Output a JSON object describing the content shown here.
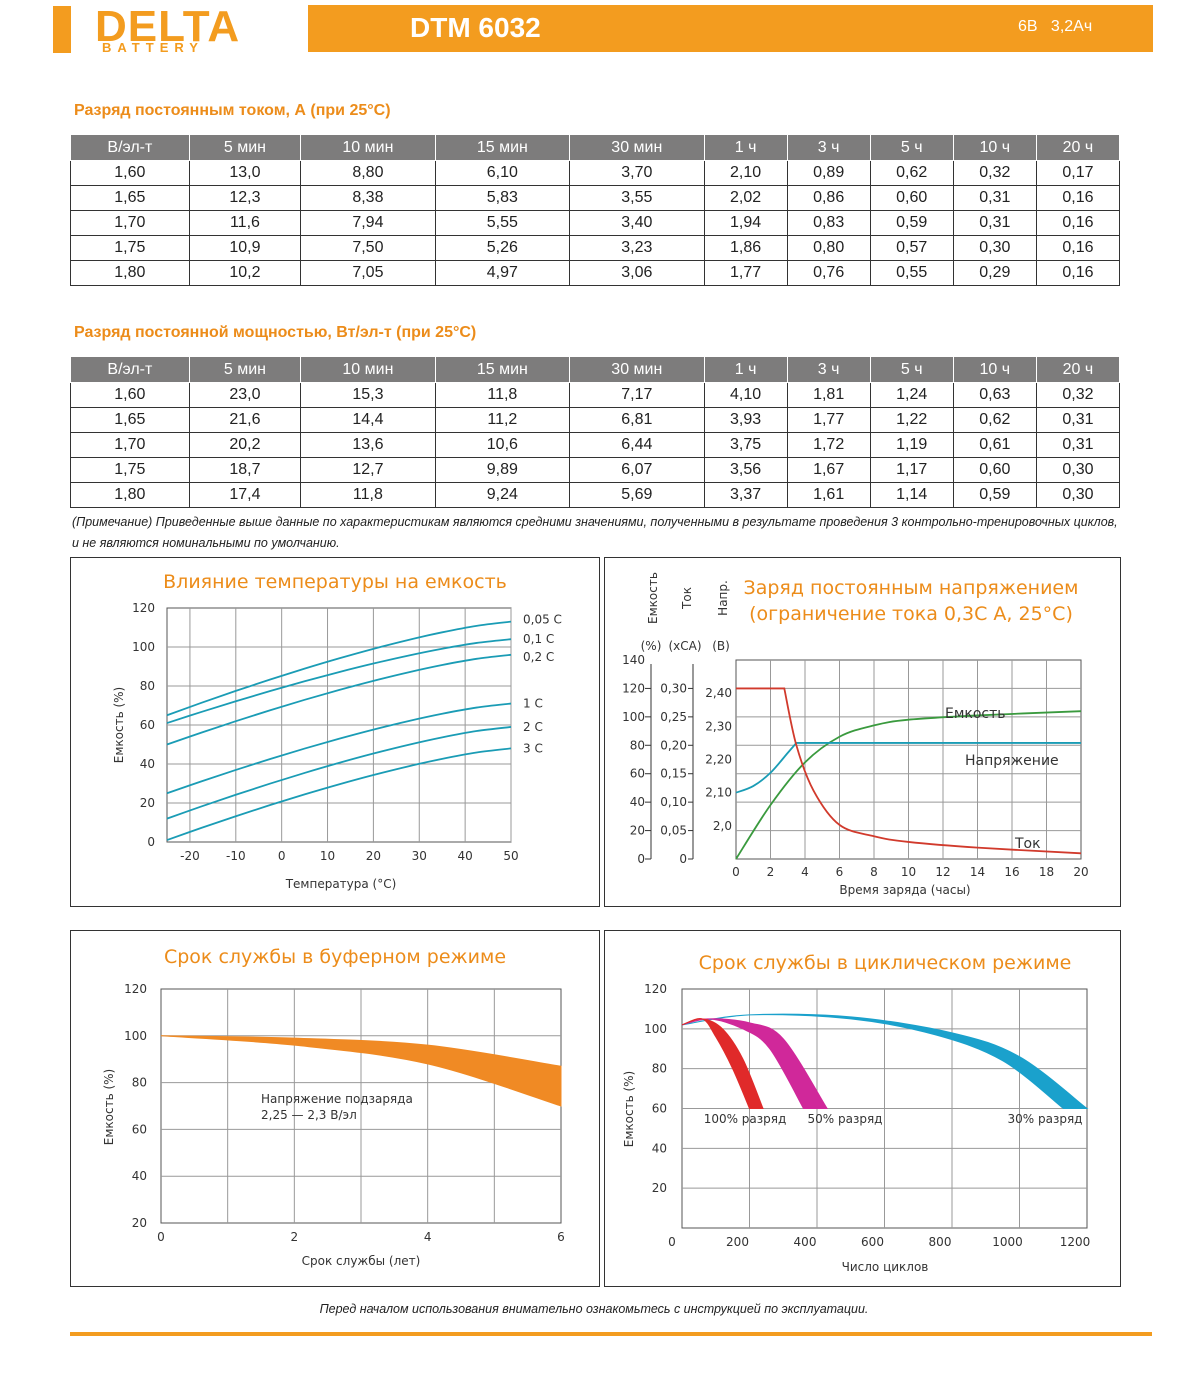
{
  "header": {
    "logo_main": "DELTA",
    "logo_sub": "BATTERY",
    "model": "DTM 6032",
    "voltage": "6В",
    "capacity": "3,2Ач",
    "accent": "#f39c1f"
  },
  "table1": {
    "title": "Разряд постоянным током, А (при 25°C)",
    "headers": [
      "В/эл-т",
      "5 мин",
      "10 мин",
      "15 мин",
      "30 мин",
      "1 ч",
      "3 ч",
      "5 ч",
      "10 ч",
      "20 ч"
    ],
    "rows": [
      [
        "1,60",
        "13,0",
        "8,80",
        "6,10",
        "3,70",
        "2,10",
        "0,89",
        "0,62",
        "0,32",
        "0,17"
      ],
      [
        "1,65",
        "12,3",
        "8,38",
        "5,83",
        "3,55",
        "2,02",
        "0,86",
        "0,60",
        "0,31",
        "0,16"
      ],
      [
        "1,70",
        "11,6",
        "7,94",
        "5,55",
        "3,40",
        "1,94",
        "0,83",
        "0,59",
        "0,31",
        "0,16"
      ],
      [
        "1,75",
        "10,9",
        "7,50",
        "5,26",
        "3,23",
        "1,86",
        "0,80",
        "0,57",
        "0,30",
        "0,16"
      ],
      [
        "1,80",
        "10,2",
        "7,05",
        "4,97",
        "3,06",
        "1,77",
        "0,76",
        "0,55",
        "0,29",
        "0,16"
      ]
    ]
  },
  "table2": {
    "title": "Разряд постоянной мощностью, Вт/эл-т (при 25°C)",
    "headers": [
      "В/эл-т",
      "5 мин",
      "10 мин",
      "15 мин",
      "30 мин",
      "1 ч",
      "3 ч",
      "5 ч",
      "10 ч",
      "20 ч"
    ],
    "rows": [
      [
        "1,60",
        "23,0",
        "15,3",
        "11,8",
        "7,17",
        "4,10",
        "1,81",
        "1,24",
        "0,63",
        "0,32"
      ],
      [
        "1,65",
        "21,6",
        "14,4",
        "11,2",
        "6,81",
        "3,93",
        "1,77",
        "1,22",
        "0,62",
        "0,31"
      ],
      [
        "1,70",
        "20,2",
        "13,6",
        "10,6",
        "6,44",
        "3,75",
        "1,72",
        "1,19",
        "0,61",
        "0,31"
      ],
      [
        "1,75",
        "18,7",
        "12,7",
        "9,89",
        "6,07",
        "3,56",
        "1,67",
        "1,17",
        "0,60",
        "0,30"
      ],
      [
        "1,80",
        "17,4",
        "11,8",
        "9,24",
        "5,69",
        "3,37",
        "1,61",
        "1,14",
        "0,59",
        "0,30"
      ]
    ]
  },
  "note": "(Примечание) Приведенные выше данные по характеристикам являются средними значениями, полученными в результате проведения 3 контрольно-тренировочных циклов, и не являются номинальными по умолчанию.",
  "chart_data": [
    {
      "type": "line",
      "title": "Влияние температуры на емкость",
      "xlabel": "Температура (°C)",
      "ylabel": "Емкость (%)",
      "xlim": [
        -25,
        50
      ],
      "ylim": [
        0,
        120
      ],
      "xticks": [
        "-20",
        "-10",
        "0",
        "10",
        "20",
        "30",
        "40",
        "50"
      ],
      "yticks": [
        "0",
        "20",
        "40",
        "60",
        "80",
        "100",
        "120"
      ],
      "series": [
        {
          "name": "0,05 C",
          "x": [
            -25,
            50
          ],
          "y": [
            65,
            113
          ]
        },
        {
          "name": "0,1 C",
          "x": [
            -25,
            50
          ],
          "y": [
            61,
            104
          ]
        },
        {
          "name": "0,2 C",
          "x": [
            -25,
            50
          ],
          "y": [
            50,
            96
          ]
        },
        {
          "name": "1 C",
          "x": [
            -25,
            50
          ],
          "y": [
            25,
            71
          ]
        },
        {
          "name": "2 C",
          "x": [
            -25,
            50
          ],
          "y": [
            12,
            59
          ]
        },
        {
          "name": "3 C",
          "x": [
            -25,
            50
          ],
          "y": [
            1,
            48
          ]
        }
      ],
      "color": "#1a9cb5"
    },
    {
      "type": "line",
      "title": "Заряд постоянным напряжением",
      "subtitle": "(ограничение тока 0,3С А, 25°С)",
      "axis_headers": [
        "Емкость",
        "Ток",
        "Напр."
      ],
      "axis_units": [
        "(%)",
        "(хСА)",
        "(В)"
      ],
      "xlabel": "Время заряда (часы)",
      "xlim": [
        0,
        20
      ],
      "xticks": [
        "0",
        "2",
        "4",
        "6",
        "8",
        "10",
        "12",
        "14",
        "16",
        "18",
        "20"
      ],
      "y1ticks": [
        "0",
        "20",
        "40",
        "60",
        "80",
        "100",
        "120",
        "140"
      ],
      "y2ticks": [
        "0",
        "0,05",
        "0,10",
        "0,15",
        "0,20",
        "0,25",
        "0,30"
      ],
      "y3ticks": [
        "2,0",
        "2,10",
        "2,20",
        "2,30",
        "2,40"
      ],
      "series": [
        {
          "name": "Емкость",
          "color": "#3a9a3e",
          "x": [
            0,
            2,
            4,
            6,
            8,
            10,
            14,
            20
          ],
          "y": [
            0,
            38,
            68,
            86,
            94,
            98,
            101,
            104
          ]
        },
        {
          "name": "Напряжение",
          "color": "#1a9cb5",
          "x": [
            0,
            1,
            2,
            3,
            3.5,
            20
          ],
          "y": [
            2.1,
            2.12,
            2.16,
            2.22,
            2.25,
            2.25
          ]
        },
        {
          "name": "Ток",
          "color": "#d13a2c",
          "x": [
            0,
            2.8,
            3.5,
            4.5,
            6,
            8,
            10,
            14,
            20
          ],
          "y": [
            0.3,
            0.3,
            0.2,
            0.12,
            0.06,
            0.04,
            0.03,
            0.02,
            0.01
          ]
        }
      ]
    },
    {
      "type": "area",
      "title": "Срок службы в буферном режиме",
      "xlabel": "Срок службы (лет)",
      "ylabel": "Емкость (%)",
      "xlim": [
        0,
        6
      ],
      "ylim": [
        20,
        120
      ],
      "xticks": [
        "0",
        "2",
        "4",
        "6"
      ],
      "yticks": [
        "20",
        "40",
        "60",
        "80",
        "100",
        "120"
      ],
      "annotation": [
        "Напряжение подзаряда",
        "2,25 — 2,3 В/эл"
      ],
      "upper": {
        "x": [
          0,
          2,
          4,
          6
        ],
        "y": [
          100,
          99,
          96,
          87
        ]
      },
      "lower": {
        "x": [
          0,
          2,
          4,
          6
        ],
        "y": [
          100,
          96,
          88,
          70
        ]
      },
      "color": "#f08a24"
    },
    {
      "type": "area",
      "title": "Срок службы в циклическом режиме",
      "xlabel": "Число циклов",
      "ylabel": "Емкость (%)",
      "xlim": [
        0,
        1200
      ],
      "ylim": [
        0,
        120
      ],
      "xticks": [
        "0",
        "200",
        "400",
        "600",
        "800",
        "1000",
        "1200"
      ],
      "yticks": [
        "20",
        "40",
        "60",
        "80",
        "100",
        "120"
      ],
      "series": [
        {
          "name": "100% разряд",
          "color": "#e02a2a",
          "upper": {
            "x": [
              0,
              60,
              120,
              180,
              240
            ],
            "y": [
              102,
              105,
              100,
              85,
              60
            ]
          },
          "lower": {
            "x": [
              0,
              60,
              100,
              150,
              200
            ],
            "y": [
              102,
              105,
              96,
              80,
              60
            ]
          }
        },
        {
          "name": "50% разряд",
          "color": "#d0289a",
          "upper": {
            "x": [
              0,
              80,
              200,
              300,
              430
            ],
            "y": [
              102,
              105,
              103,
              95,
              60
            ]
          },
          "lower": {
            "x": [
              0,
              80,
              180,
              260,
              360
            ],
            "y": [
              102,
              105,
              100,
              90,
              60
            ]
          }
        },
        {
          "name": "30% разряд",
          "color": "#1aa1cc",
          "upper": {
            "x": [
              0,
              200,
              500,
              800,
              1000,
              1200
            ],
            "y": [
              102,
              107,
              106,
              98,
              86,
              60
            ]
          },
          "lower": {
            "x": [
              0,
              200,
              500,
              750,
              950,
              1130
            ],
            "y": [
              102,
              107,
              105,
              97,
              84,
              60
            ]
          }
        }
      ]
    }
  ],
  "footer": "Перед началом использования внимательно ознакомьтесь с инструкцией по эксплуатации."
}
